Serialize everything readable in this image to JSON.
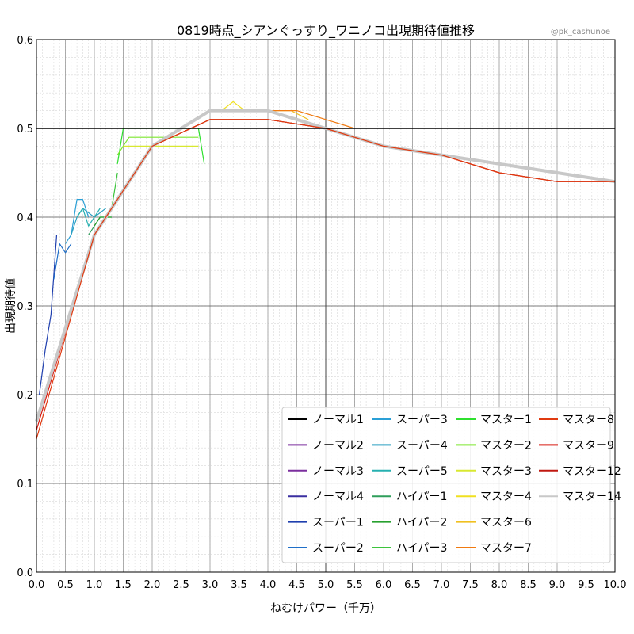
{
  "chart_data": {
    "type": "line",
    "title": "0819時点_シアンぐっすり_ワニノコ出現期待値推移",
    "credit": "@pk_cashunoe",
    "xlabel": "ねむけパワー（千万）",
    "ylabel": "出現期待値",
    "xlim": [
      0.0,
      10.0
    ],
    "ylim": [
      0.0,
      0.6
    ],
    "xticks": [
      "0.0",
      "0.5",
      "1.0",
      "1.5",
      "2.0",
      "2.5",
      "3.0",
      "3.5",
      "4.0",
      "4.5",
      "5.0",
      "5.5",
      "6.0",
      "6.5",
      "7.0",
      "7.5",
      "8.0",
      "8.5",
      "9.0",
      "9.5",
      "10.0"
    ],
    "yticks": [
      "0.0",
      "0.1",
      "0.2",
      "0.3",
      "0.4",
      "0.5",
      "0.6"
    ],
    "reference_line": 0.5,
    "grid": true,
    "legend_position": "bottom-right",
    "series": [
      {
        "name": "ノーマル1",
        "color": "#000000",
        "x": [],
        "y": []
      },
      {
        "name": "ノーマル2",
        "color": "#7b2f9e",
        "x": [],
        "y": []
      },
      {
        "name": "ノーマル3",
        "color": "#7b2f9e",
        "x": [],
        "y": []
      },
      {
        "name": "ノーマル4",
        "color": "#3a2fa0",
        "x": [],
        "y": []
      },
      {
        "name": "スーパー1",
        "color": "#1f3fae",
        "x": [
          0.05,
          0.15,
          0.25,
          0.35
        ],
        "y": [
          0.2,
          0.25,
          0.29,
          0.38
        ]
      },
      {
        "name": "スーパー2",
        "color": "#1f6fc8",
        "x": [
          0.3,
          0.4,
          0.5,
          0.6
        ],
        "y": [
          0.33,
          0.37,
          0.36,
          0.37
        ]
      },
      {
        "name": "スーパー3",
        "color": "#2a9fd6",
        "x": [
          0.5,
          0.6,
          0.7,
          0.8,
          0.9
        ],
        "y": [
          0.37,
          0.38,
          0.42,
          0.42,
          0.4
        ]
      },
      {
        "name": "スーパー4",
        "color": "#2a9fc0",
        "x": [
          0.6,
          0.7,
          0.8,
          1.0,
          1.2
        ],
        "y": [
          0.38,
          0.4,
          0.41,
          0.4,
          0.41
        ]
      },
      {
        "name": "スーパー5",
        "color": "#26b0b0",
        "x": [
          0.7,
          0.8,
          0.9,
          1.0,
          1.1
        ],
        "y": [
          0.4,
          0.41,
          0.39,
          0.4,
          0.41
        ]
      },
      {
        "name": "ハイパー1",
        "color": "#2e9e5a",
        "x": [
          0.9,
          1.0,
          1.1,
          1.2,
          1.3
        ],
        "y": [
          0.38,
          0.39,
          0.4,
          0.4,
          0.4
        ]
      },
      {
        "name": "ハイパー2",
        "color": "#27a02f",
        "x": [
          1.0,
          1.1,
          1.2,
          1.3
        ],
        "y": [
          0.39,
          0.4,
          0.4,
          0.4
        ]
      },
      {
        "name": "ハイパー3",
        "color": "#3cc43c",
        "x": [
          1.2,
          1.3,
          1.4
        ],
        "y": [
          0.4,
          0.41,
          0.45
        ]
      },
      {
        "name": "マスター1",
        "color": "#2ee02e",
        "x": [
          1.4,
          1.5,
          1.6,
          1.8,
          2.0,
          2.2,
          2.4,
          2.6,
          2.8,
          2.9
        ],
        "y": [
          0.46,
          0.5,
          0.5,
          0.5,
          0.5,
          0.5,
          0.5,
          0.5,
          0.5,
          0.46
        ]
      },
      {
        "name": "マスター2",
        "color": "#7ce62e",
        "x": [
          1.4,
          1.6,
          1.8,
          2.0,
          2.2,
          2.4,
          2.6,
          2.8
        ],
        "y": [
          0.47,
          0.49,
          0.49,
          0.49,
          0.49,
          0.49,
          0.49,
          0.49
        ]
      },
      {
        "name": "マスター3",
        "color": "#d8e830",
        "x": [
          1.5,
          1.7,
          2.0,
          2.3,
          2.6,
          2.8
        ],
        "y": [
          0.48,
          0.48,
          0.48,
          0.48,
          0.48,
          0.48
        ]
      },
      {
        "name": "マスター4",
        "color": "#f0e020",
        "x": [
          3.0,
          3.2,
          3.4,
          3.6
        ],
        "y": [
          0.52,
          0.52,
          0.53,
          0.52
        ]
      },
      {
        "name": "マスター6",
        "color": "#f0c020",
        "x": [
          3.2,
          3.5,
          3.8,
          4.1,
          4.4,
          4.7
        ],
        "y": [
          0.52,
          0.52,
          0.52,
          0.52,
          0.52,
          0.51
        ]
      },
      {
        "name": "マスター7",
        "color": "#f07a10",
        "x": [
          3.5,
          4.0,
          4.5,
          5.0,
          5.5
        ],
        "y": [
          0.52,
          0.52,
          0.52,
          0.51,
          0.5
        ]
      },
      {
        "name": "マスター8",
        "color": "#e03a10",
        "x": [
          0.0,
          1.0,
          2.0,
          3.0,
          4.0,
          5.0,
          6.0,
          7.0,
          8.0,
          9.0,
          10.0
        ],
        "y": [
          0.15,
          0.38,
          0.48,
          0.51,
          0.51,
          0.5,
          0.48,
          0.47,
          0.45,
          0.44,
          0.44
        ]
      },
      {
        "name": "マスター9",
        "color": "#d81a10",
        "x": [
          0.0,
          1.0,
          2.0,
          3.0,
          4.0,
          5.0,
          6.0,
          7.0,
          8.0,
          9.0,
          10.0
        ],
        "y": [
          0.16,
          0.38,
          0.48,
          0.51,
          0.51,
          0.5,
          0.48,
          0.47,
          0.45,
          0.44,
          0.44
        ]
      },
      {
        "name": "マスター12",
        "color": "#c01810",
        "x": [
          0.0,
          1.0,
          2.0,
          3.0,
          4.0,
          5.0,
          6.0,
          7.0,
          8.0,
          9.0,
          10.0
        ],
        "y": [
          0.17,
          0.38,
          0.48,
          0.51,
          0.51,
          0.5,
          0.48,
          0.47,
          0.45,
          0.44,
          0.44
        ]
      },
      {
        "name": "マスター14",
        "color": "#c8c8c8",
        "x": [
          0.0,
          1.0,
          2.0,
          3.0,
          4.0,
          5.0,
          6.0,
          7.0,
          8.0,
          9.0,
          10.0
        ],
        "y": [
          0.17,
          0.38,
          0.48,
          0.52,
          0.52,
          0.5,
          0.48,
          0.47,
          0.46,
          0.45,
          0.44
        ]
      }
    ]
  }
}
